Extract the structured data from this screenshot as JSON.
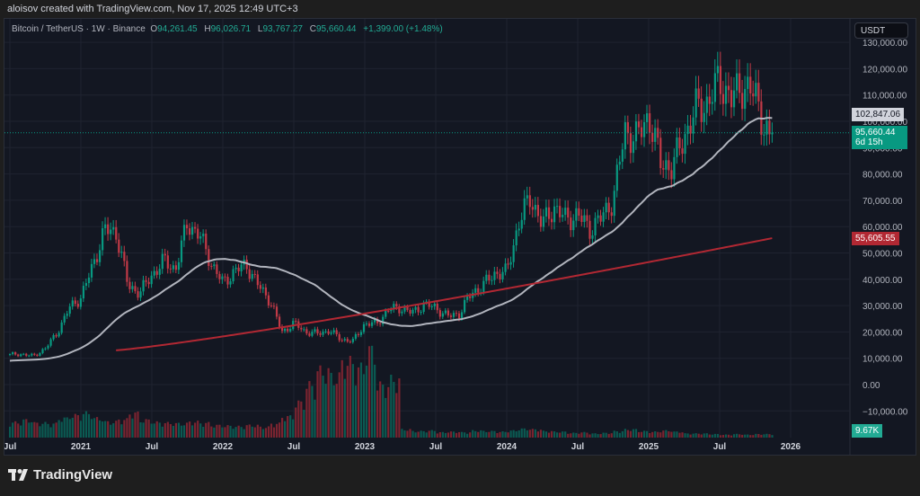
{
  "credit": "aloisov created with TradingView.com, Nov 17, 2025 12:49 UTC+3",
  "legend": {
    "symbol": "Bitcoin / TetherUS · 1W · Binance",
    "open_label": "O",
    "open": "94,261.45",
    "high_label": "H",
    "high": "96,026.71",
    "low_label": "L",
    "low": "93,767.27",
    "close_label": "C",
    "close": "95,660.44",
    "change": "+1,399.00 (+1.48%)"
  },
  "currency": "USDT",
  "price_axis": [
    "130,000.00",
    "120,000.00",
    "110,000.00",
    "100,000.00",
    "90,000.00",
    "80,000.00",
    "70,000.00",
    "60,000.00",
    "50,000.00",
    "40,000.00",
    "30,000.00",
    "20,000.00",
    "10,000.00",
    "0.00",
    "−10,000.00"
  ],
  "time_axis": [
    "Jul",
    "2021",
    "Jul",
    "2022",
    "Jul",
    "2023",
    "Jul",
    "2024",
    "Jul",
    "2025",
    "Jul",
    "2026"
  ],
  "tags": {
    "ma50": "102,847.06",
    "last_price": "95,660.44",
    "countdown": "6d 15h",
    "ma200": "55,605.55",
    "volume": "9.67K"
  },
  "colors": {
    "up": "#089981",
    "down": "#c23a47",
    "ma50": "#b2b5be",
    "ma200": "#b22833",
    "bg": "#131722"
  },
  "chart_data": {
    "type": "candlestick",
    "interval": "1W",
    "start": "2020-07",
    "monthly_close": [
      11.3,
      11.6,
      10.8,
      13.8,
      19.7,
      29.0,
      33.1,
      45.1,
      58.8,
      57.7,
      37.3,
      35.0,
      41.5,
      47.1,
      43.8,
      61.3,
      57.0,
      46.3,
      38.5,
      43.2,
      45.5,
      37.6,
      31.8,
      19.9,
      23.3,
      20.0,
      19.4,
      20.5,
      17.2,
      16.5,
      23.1,
      23.1,
      28.5,
      29.2,
      27.2,
      30.5,
      29.2,
      25.9,
      27.0,
      34.6,
      37.7,
      42.3,
      42.6,
      61.2,
      71.3,
      60.7,
      67.5,
      62.7,
      64.6,
      59.0,
      63.3,
      70.3,
      96.4,
      93.4,
      102.4,
      84.3,
      82.5,
      94.2,
      104.6,
      107.1,
      115.7,
      108.2,
      114.0,
      109.6,
      95.7
    ],
    "monthly_volume_k": [
      260,
      300,
      250,
      240,
      330,
      380,
      420,
      330,
      270,
      310,
      420,
      300,
      260,
      250,
      240,
      270,
      250,
      210,
      200,
      190,
      210,
      180,
      240,
      360,
      600,
      900,
      1150,
      1050,
      1300,
      1200,
      1500,
      900,
      1000,
      140,
      110,
      120,
      90,
      100,
      90,
      120,
      110,
      100,
      120,
      150,
      140,
      110,
      100,
      80,
      90,
      70,
      80,
      110,
      140,
      110,
      100,
      120,
      100,
      70,
      70,
      60,
      50,
      60,
      50,
      60,
      60
    ],
    "ma200_start": {
      "date": "2021-04",
      "value": 13000
    },
    "ma200_end": {
      "date": "2025-11",
      "value": 55605.55
    },
    "price_unit": "USDT (thousands in monthly_close)",
    "ylim": [
      -10000,
      130000
    ]
  }
}
